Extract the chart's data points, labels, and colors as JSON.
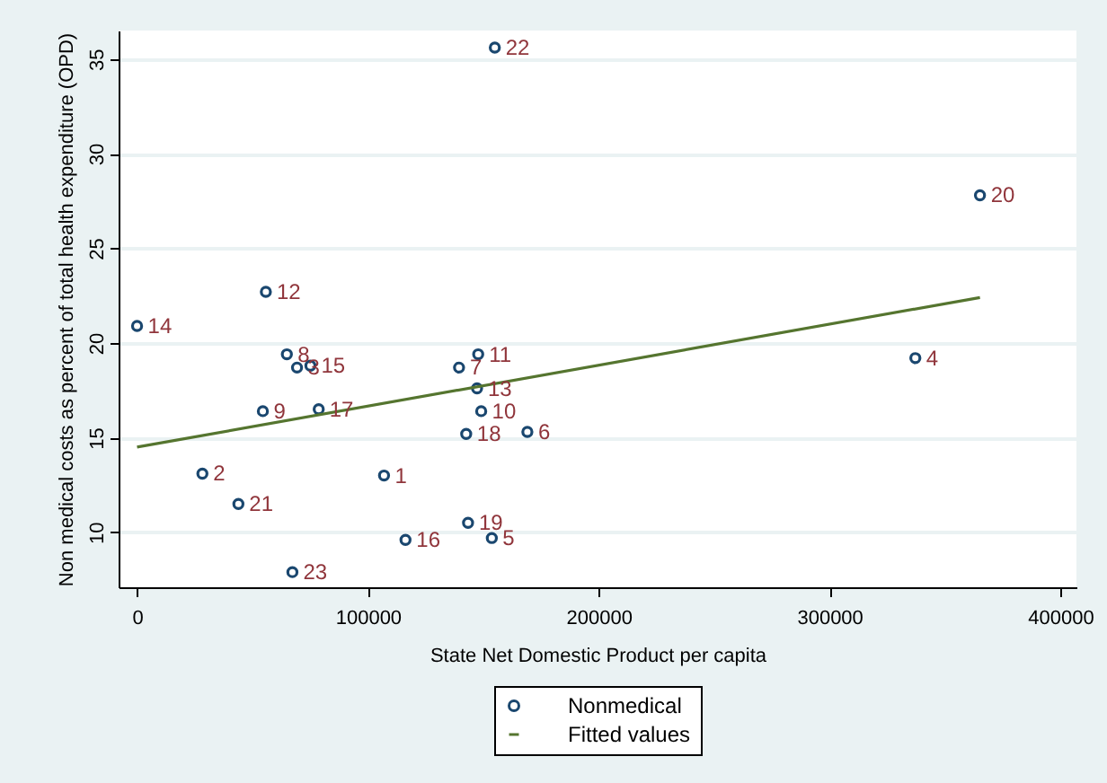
{
  "chart_data": {
    "type": "scatter",
    "xlabel": "State Net Domestic Product per capita",
    "ylabel": "Non medical costs as percent of total health expenditure (OPD)",
    "xlim": [
      -8000,
      407000
    ],
    "xticks": [
      0,
      100000,
      200000,
      300000,
      400000
    ],
    "ylim": [
      7.1,
      36.5
    ],
    "yticks": [
      10,
      15,
      20,
      25,
      30,
      35
    ],
    "grid": "y",
    "legend": "bottom",
    "series": [
      {
        "name": "Nonmedical",
        "color": "#1a476f",
        "marker": "circle",
        "x": [
          107000,
          28300,
          69300,
          337200,
          153700,
          169100,
          139500,
          64900,
          54500,
          149100,
          147800,
          55800,
          147300,
          0,
          75100,
          116300,
          78700,
          142600,
          143400,
          365200,
          43900,
          155000,
          67300
        ],
        "values": [
          13.0,
          13.1,
          18.7,
          19.2,
          9.7,
          15.3,
          18.7,
          19.4,
          16.4,
          16.4,
          19.4,
          22.7,
          17.6,
          20.9,
          18.8,
          9.6,
          16.5,
          15.2,
          10.5,
          27.8,
          11.5,
          35.6,
          7.9
        ]
      },
      {
        "name": "Fitted values",
        "type": "line",
        "color": "#55752f",
        "line_style": "solid",
        "x": [
          0,
          365200
        ],
        "values": [
          14.5,
          22.4
        ]
      }
    ],
    "annotations": [
      {
        "text": "1",
        "x": 107000,
        "y": 13.0
      },
      {
        "text": "2",
        "x": 28300,
        "y": 13.1
      },
      {
        "text": "3",
        "x": 69300,
        "y": 18.7
      },
      {
        "text": "4",
        "x": 337200,
        "y": 19.2
      },
      {
        "text": "5",
        "x": 153700,
        "y": 9.7
      },
      {
        "text": "6",
        "x": 169100,
        "y": 15.3
      },
      {
        "text": "7",
        "x": 139500,
        "y": 18.7
      },
      {
        "text": "8",
        "x": 64900,
        "y": 19.4
      },
      {
        "text": "9",
        "x": 54500,
        "y": 16.4
      },
      {
        "text": "10",
        "x": 149100,
        "y": 16.4
      },
      {
        "text": "11",
        "x": 147800,
        "y": 19.4
      },
      {
        "text": "12",
        "x": 55800,
        "y": 22.7
      },
      {
        "text": "13",
        "x": 147300,
        "y": 17.6
      },
      {
        "text": "14",
        "x": 0,
        "y": 20.9
      },
      {
        "text": "15",
        "x": 75100,
        "y": 18.8
      },
      {
        "text": "16",
        "x": 116300,
        "y": 9.6
      },
      {
        "text": "17",
        "x": 78700,
        "y": 16.5
      },
      {
        "text": "18",
        "x": 142600,
        "y": 15.2
      },
      {
        "text": "19",
        "x": 143400,
        "y": 10.5
      },
      {
        "text": "20",
        "x": 365200,
        "y": 27.8
      },
      {
        "text": "21",
        "x": 43900,
        "y": 11.5
      },
      {
        "text": "22",
        "x": 155000,
        "y": 35.6
      },
      {
        "text": "23",
        "x": 67300,
        "y": 7.9
      }
    ]
  }
}
